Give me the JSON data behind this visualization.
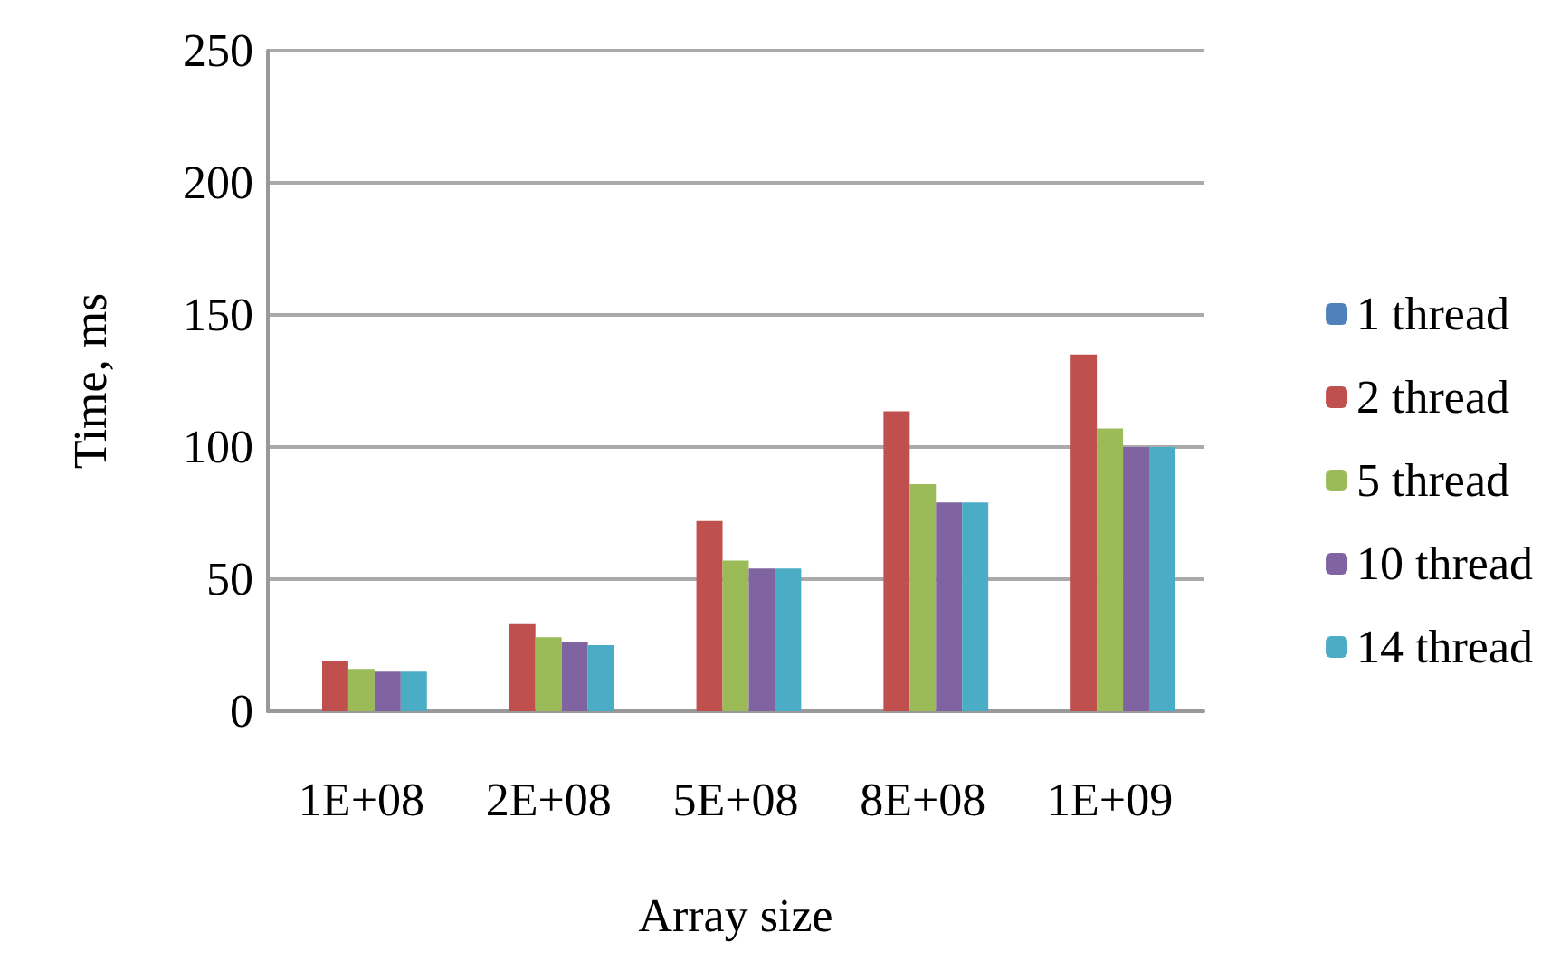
{
  "chart_data": {
    "type": "bar",
    "xlabel": "Array size",
    "ylabel": "Time, ms",
    "categories": [
      "1E+08",
      "2E+08",
      "5E+08",
      "8E+08",
      "1E+09"
    ],
    "series": [
      {
        "name": "1 thread",
        "color": "#4f81bd",
        "values": [
          null,
          null,
          null,
          null,
          null
        ]
      },
      {
        "name": "2 thread",
        "color": "#c0504d",
        "values": [
          19,
          33,
          72,
          113.5,
          135
        ]
      },
      {
        "name": "5 thread",
        "color": "#9bbb59",
        "values": [
          16,
          28,
          57,
          86,
          107
        ]
      },
      {
        "name": "10 thread",
        "color": "#8064a2",
        "values": [
          15,
          26,
          54,
          79,
          100
        ]
      },
      {
        "name": "14 thread",
        "color": "#4bacc6",
        "values": [
          15,
          25,
          54,
          79,
          100
        ]
      }
    ],
    "ylim": [
      0,
      250
    ],
    "yticks": [
      0,
      50,
      100,
      150,
      200,
      250
    ],
    "grid": "y",
    "legend": "right"
  }
}
